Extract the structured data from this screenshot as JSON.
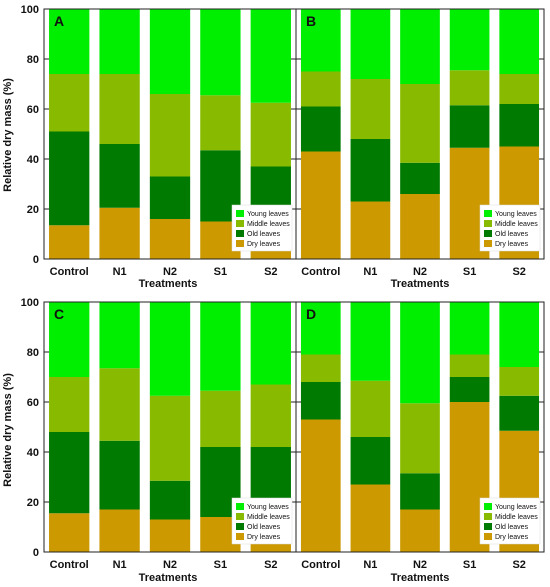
{
  "y_axis_title": "Relative dry mass (%)",
  "x_axis_title": "Treatments",
  "colors": {
    "young": "#00ee00",
    "middle": "#88bb00",
    "old": "#007a00",
    "dry": "#cc9900"
  },
  "chart_data": [
    {
      "type": "bar",
      "stacked": true,
      "panel": "A",
      "categories": [
        "Control",
        "N1",
        "N2",
        "S1",
        "S2"
      ],
      "ylim": [
        0,
        100
      ],
      "yticks": [
        0,
        20,
        40,
        60,
        80,
        100
      ],
      "legend_position": "bottom-right",
      "series": [
        {
          "name": "Dry leaves",
          "values": [
            13.5,
            20.5,
            16,
            15,
            12
          ]
        },
        {
          "name": "Old leaves",
          "values": [
            37.5,
            25.5,
            17,
            28.5,
            25
          ]
        },
        {
          "name": "Middle leaves",
          "values": [
            23,
            28,
            33,
            22,
            25.5
          ]
        },
        {
          "name": "Young leaves",
          "values": [
            26,
            26,
            34,
            34.5,
            37.5
          ]
        }
      ]
    },
    {
      "type": "bar",
      "stacked": true,
      "panel": "B",
      "categories": [
        "Control",
        "N1",
        "N2",
        "S1",
        "S2"
      ],
      "ylim": [
        0,
        100
      ],
      "yticks": [
        0,
        20,
        40,
        60,
        80,
        100
      ],
      "legend_position": "bottom-right",
      "series": [
        {
          "name": "Dry leaves",
          "values": [
            43,
            23,
            26,
            44.5,
            45
          ]
        },
        {
          "name": "Old leaves",
          "values": [
            18,
            25,
            12.5,
            17,
            17
          ]
        },
        {
          "name": "Middle leaves",
          "values": [
            14,
            24,
            31.5,
            14,
            12
          ]
        },
        {
          "name": "Young leaves",
          "values": [
            25,
            28,
            30,
            24.5,
            26
          ]
        }
      ]
    },
    {
      "type": "bar",
      "stacked": true,
      "panel": "C",
      "categories": [
        "Control",
        "N1",
        "N2",
        "S1",
        "S2"
      ],
      "ylim": [
        0,
        100
      ],
      "yticks": [
        0,
        20,
        40,
        60,
        80,
        100
      ],
      "legend_position": "bottom-right",
      "series": [
        {
          "name": "Dry leaves",
          "values": [
            15.5,
            17,
            13,
            14,
            14.5
          ]
        },
        {
          "name": "Old leaves",
          "values": [
            32.5,
            27.5,
            15.5,
            28,
            27.5
          ]
        },
        {
          "name": "Middle leaves",
          "values": [
            22,
            29,
            34,
            22.5,
            25
          ]
        },
        {
          "name": "Young leaves",
          "values": [
            30,
            26.5,
            37.5,
            35.5,
            33
          ]
        }
      ]
    },
    {
      "type": "bar",
      "stacked": true,
      "panel": "D",
      "categories": [
        "Control",
        "N1",
        "N2",
        "S1",
        "S2"
      ],
      "ylim": [
        0,
        100
      ],
      "yticks": [
        0,
        20,
        40,
        60,
        80,
        100
      ],
      "legend_position": "bottom-right",
      "series": [
        {
          "name": "Dry leaves",
          "values": [
            53,
            27,
            17,
            60,
            48.5
          ]
        },
        {
          "name": "Old leaves",
          "values": [
            15,
            19,
            14.5,
            10,
            14
          ]
        },
        {
          "name": "Middle leaves",
          "values": [
            11,
            22.5,
            28,
            9,
            11.5
          ]
        },
        {
          "name": "Young leaves",
          "values": [
            21,
            31.5,
            40.5,
            21,
            26
          ]
        }
      ]
    }
  ]
}
